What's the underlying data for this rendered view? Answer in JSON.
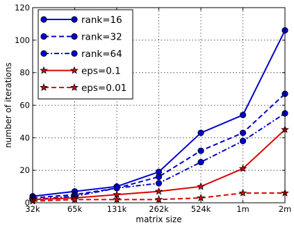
{
  "chart_data": {
    "type": "line",
    "xlabel": "matrix size",
    "ylabel": "number of iterations",
    "categories": [
      "32k",
      "65k",
      "131k",
      "262k",
      "524k",
      "1m",
      "2m"
    ],
    "ylim": [
      0,
      120
    ],
    "yticks": [
      0,
      20,
      40,
      60,
      80,
      100,
      120
    ],
    "grid": true,
    "legend_position": "top-left",
    "series": [
      {
        "name": "rank=16",
        "color": "#0000cc",
        "dash": "solid",
        "marker": "circle",
        "values": [
          4,
          7,
          10,
          19,
          43,
          54,
          106
        ]
      },
      {
        "name": "rank=32",
        "color": "#0000cc",
        "dash": "dashed",
        "marker": "circle",
        "values": [
          3,
          5,
          9,
          16,
          32,
          43,
          67
        ]
      },
      {
        "name": "rank=64",
        "color": "#0000cc",
        "dash": "dashdot",
        "marker": "circle",
        "values": [
          2,
          4,
          9,
          12,
          25,
          38,
          55
        ]
      },
      {
        "name": "eps=0.1",
        "color": "#dd0000",
        "dash": "solid",
        "marker": "star",
        "values": [
          2,
          3,
          5,
          7,
          10,
          21,
          45
        ]
      },
      {
        "name": "eps=0.01",
        "color": "#dd0000",
        "dash": "dashed",
        "marker": "star",
        "values": [
          1,
          2,
          2,
          2,
          3,
          6,
          6
        ]
      }
    ]
  }
}
